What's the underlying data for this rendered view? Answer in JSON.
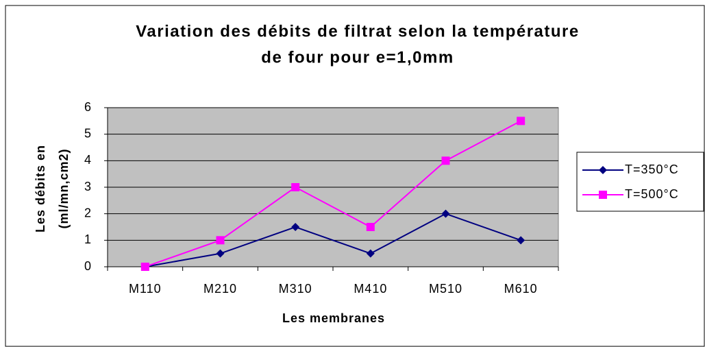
{
  "chart_data": {
    "type": "line",
    "title": [
      "Variation des débits de filtrat selon la température",
      "de four pour e=1,0mm"
    ],
    "x_label": "Les membranes",
    "y_label": [
      "Les débits en",
      "(ml/mn,cm2)"
    ],
    "categories": [
      "M110",
      "M210",
      "M310",
      "M410",
      "M510",
      "M610"
    ],
    "series": [
      {
        "name": "T=350°C",
        "color": "#000080",
        "marker": "diamond",
        "values": [
          0,
          0.5,
          1.5,
          0.5,
          2,
          1
        ]
      },
      {
        "name": "T=500°C",
        "color": "#ff00ff",
        "marker": "square",
        "values": [
          0,
          1,
          3,
          1.5,
          4,
          5.5
        ]
      }
    ],
    "ylim": [
      0,
      6
    ],
    "yticks": [
      0,
      1,
      2,
      3,
      4,
      5,
      6
    ],
    "grid": true,
    "legend": "right"
  }
}
